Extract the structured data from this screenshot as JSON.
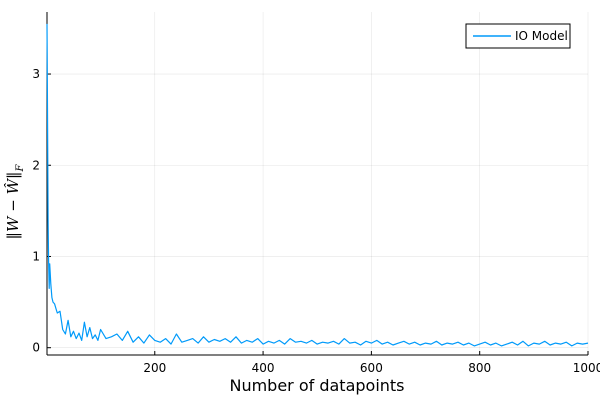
{
  "chart_data": {
    "type": "line",
    "xlabel": "Number of datapoints",
    "ylabel": "‖W − Ŵ‖",
    "ylabel_subscript": "F",
    "xlim": [
      1,
      1000
    ],
    "ylim": [
      -0.08,
      3.68
    ],
    "x_ticks": [
      200,
      400,
      600,
      800,
      1000
    ],
    "y_ticks": [
      0,
      1,
      2,
      3
    ],
    "grid": true,
    "legend_position": "top-right",
    "series": [
      {
        "name": "IO Model",
        "color": "#009AFA",
        "x": [
          1,
          2,
          3,
          4,
          5,
          6,
          8,
          10,
          12,
          15,
          18,
          20,
          25,
          30,
          35,
          40,
          45,
          50,
          55,
          60,
          65,
          70,
          75,
          80,
          85,
          90,
          95,
          100,
          110,
          120,
          130,
          140,
          150,
          160,
          170,
          180,
          190,
          200,
          210,
          220,
          230,
          240,
          250,
          260,
          270,
          280,
          290,
          300,
          310,
          320,
          330,
          340,
          350,
          360,
          370,
          380,
          390,
          400,
          410,
          420,
          430,
          440,
          450,
          460,
          470,
          480,
          490,
          500,
          510,
          520,
          530,
          540,
          550,
          560,
          570,
          580,
          590,
          600,
          610,
          620,
          630,
          640,
          650,
          660,
          670,
          680,
          690,
          700,
          710,
          720,
          730,
          740,
          750,
          760,
          770,
          780,
          790,
          800,
          810,
          820,
          830,
          840,
          850,
          860,
          870,
          880,
          890,
          900,
          910,
          920,
          930,
          940,
          950,
          960,
          970,
          980,
          990,
          1000
        ],
        "values": [
          3.55,
          2.6,
          1.4,
          0.95,
          0.65,
          0.92,
          0.7,
          0.55,
          0.5,
          0.48,
          0.42,
          0.38,
          0.4,
          0.2,
          0.15,
          0.3,
          0.12,
          0.18,
          0.1,
          0.16,
          0.08,
          0.28,
          0.12,
          0.22,
          0.1,
          0.14,
          0.08,
          0.2,
          0.1,
          0.12,
          0.15,
          0.08,
          0.18,
          0.06,
          0.12,
          0.05,
          0.14,
          0.08,
          0.06,
          0.1,
          0.04,
          0.15,
          0.06,
          0.08,
          0.1,
          0.05,
          0.12,
          0.06,
          0.09,
          0.07,
          0.1,
          0.06,
          0.12,
          0.05,
          0.08,
          0.06,
          0.1,
          0.04,
          0.07,
          0.05,
          0.08,
          0.04,
          0.1,
          0.06,
          0.07,
          0.05,
          0.08,
          0.04,
          0.06,
          0.05,
          0.07,
          0.04,
          0.1,
          0.05,
          0.06,
          0.03,
          0.07,
          0.05,
          0.08,
          0.04,
          0.06,
          0.03,
          0.05,
          0.07,
          0.04,
          0.06,
          0.03,
          0.05,
          0.04,
          0.07,
          0.03,
          0.05,
          0.04,
          0.06,
          0.03,
          0.05,
          0.02,
          0.04,
          0.06,
          0.03,
          0.05,
          0.02,
          0.04,
          0.06,
          0.03,
          0.07,
          0.02,
          0.05,
          0.04,
          0.07,
          0.03,
          0.05,
          0.04,
          0.06,
          0.02,
          0.05,
          0.04,
          0.05
        ]
      }
    ]
  }
}
